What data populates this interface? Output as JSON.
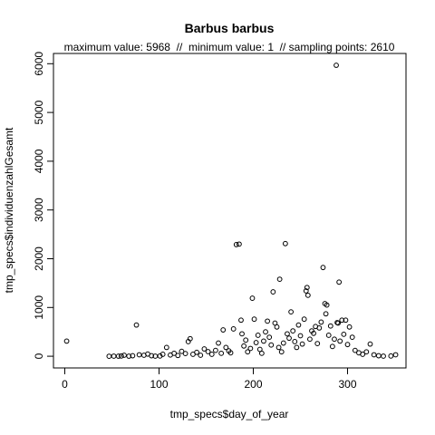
{
  "chart_data": {
    "type": "scatter",
    "title": "Barbus barbus",
    "subtitle": "maximum value: 5968  //  minimum value: 1  // sampling points: 2610",
    "xlabel": "tmp_specs$day_of_year",
    "ylabel": "tmp_specs$individuenzahlGesamt",
    "xlim": [
      -12,
      362
    ],
    "ylim": [
      -240,
      6210
    ],
    "xticks": [
      0,
      100,
      200,
      300
    ],
    "xtick_labels": [
      "0",
      "100",
      "200",
      "300"
    ],
    "yticks": [
      0,
      1000,
      2000,
      3000,
      4000,
      5000,
      6000
    ],
    "ytick_labels": [
      "0",
      "1000",
      "2000",
      "3000",
      "4000",
      "5000",
      "6000"
    ],
    "grid": false,
    "legend": "none",
    "marker": "open-circle",
    "colors": {
      "points": "#000000",
      "axes": "#000000",
      "background": "#ffffff"
    },
    "points": [
      [
        2,
        310
      ],
      [
        47,
        0
      ],
      [
        52,
        2
      ],
      [
        57,
        1
      ],
      [
        60,
        5
      ],
      [
        63,
        20
      ],
      [
        68,
        1
      ],
      [
        72,
        10
      ],
      [
        76,
        640
      ],
      [
        79,
        30
      ],
      [
        84,
        20
      ],
      [
        88,
        45
      ],
      [
        92,
        10
      ],
      [
        96,
        2
      ],
      [
        101,
        5
      ],
      [
        104,
        40
      ],
      [
        108,
        180
      ],
      [
        112,
        25
      ],
      [
        116,
        60
      ],
      [
        120,
        15
      ],
      [
        124,
        100
      ],
      [
        128,
        55
      ],
      [
        131,
        300
      ],
      [
        133,
        360
      ],
      [
        136,
        40
      ],
      [
        140,
        80
      ],
      [
        144,
        20
      ],
      [
        148,
        150
      ],
      [
        152,
        95
      ],
      [
        156,
        40
      ],
      [
        160,
        120
      ],
      [
        163,
        270
      ],
      [
        166,
        60
      ],
      [
        168,
        540
      ],
      [
        171,
        180
      ],
      [
        174,
        110
      ],
      [
        176,
        70
      ],
      [
        179,
        560
      ],
      [
        182,
        2290
      ],
      [
        185,
        2300
      ],
      [
        187,
        740
      ],
      [
        188,
        460
      ],
      [
        190,
        210
      ],
      [
        192,
        330
      ],
      [
        194,
        90
      ],
      [
        197,
        160
      ],
      [
        199,
        1190
      ],
      [
        201,
        760
      ],
      [
        203,
        280
      ],
      [
        205,
        430
      ],
      [
        207,
        140
      ],
      [
        209,
        60
      ],
      [
        211,
        310
      ],
      [
        213,
        500
      ],
      [
        215,
        720
      ],
      [
        217,
        390
      ],
      [
        219,
        230
      ],
      [
        221,
        1320
      ],
      [
        223,
        680
      ],
      [
        225,
        600
      ],
      [
        227,
        180
      ],
      [
        228,
        1580
      ],
      [
        230,
        90
      ],
      [
        232,
        270
      ],
      [
        234,
        2310
      ],
      [
        236,
        460
      ],
      [
        238,
        370
      ],
      [
        240,
        910
      ],
      [
        242,
        520
      ],
      [
        244,
        300
      ],
      [
        246,
        180
      ],
      [
        248,
        640
      ],
      [
        250,
        420
      ],
      [
        252,
        250
      ],
      [
        254,
        760
      ],
      [
        256,
        1340
      ],
      [
        257,
        1410
      ],
      [
        258,
        1250
      ],
      [
        260,
        350
      ],
      [
        262,
        520
      ],
      [
        264,
        470
      ],
      [
        266,
        610
      ],
      [
        268,
        260
      ],
      [
        270,
        580
      ],
      [
        272,
        700
      ],
      [
        274,
        1820
      ],
      [
        276,
        1080
      ],
      [
        277,
        870
      ],
      [
        278,
        1050
      ],
      [
        280,
        430
      ],
      [
        282,
        620
      ],
      [
        284,
        200
      ],
      [
        286,
        350
      ],
      [
        288,
        5968
      ],
      [
        289,
        690
      ],
      [
        290,
        680
      ],
      [
        291,
        1520
      ],
      [
        292,
        310
      ],
      [
        294,
        740
      ],
      [
        296,
        450
      ],
      [
        298,
        740
      ],
      [
        300,
        240
      ],
      [
        302,
        600
      ],
      [
        305,
        390
      ],
      [
        308,
        120
      ],
      [
        312,
        70
      ],
      [
        316,
        40
      ],
      [
        320,
        90
      ],
      [
        324,
        250
      ],
      [
        328,
        30
      ],
      [
        333,
        10
      ],
      [
        338,
        2
      ],
      [
        346,
        5
      ],
      [
        351,
        30
      ]
    ]
  }
}
